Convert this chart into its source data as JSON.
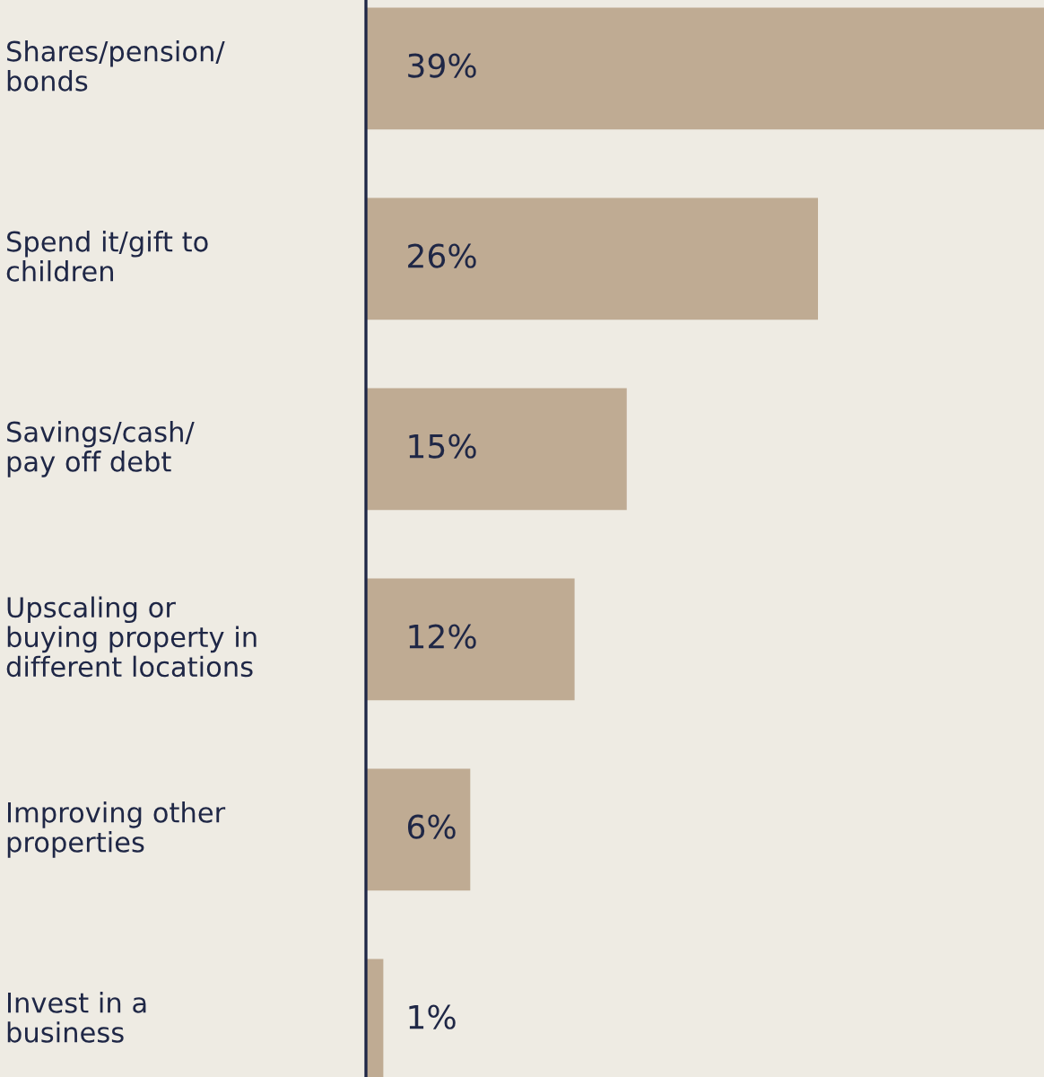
{
  "chart_data": {
    "type": "bar",
    "orientation": "horizontal",
    "categories": [
      "Shares/pension/\nbonds",
      "Spend it/gift to\nchildren",
      "Savings/cash/\npay off debt",
      "Upscaling or\nbuying property in\ndifferent locations",
      "Improving other\nproperties",
      "Invest in a\nbusiness"
    ],
    "values": [
      39,
      26,
      15,
      12,
      6,
      1
    ],
    "color": "#bfab93",
    "value_labels": [
      "39%",
      "26%",
      "15%",
      "12%",
      "6%",
      "1%"
    ]
  }
}
